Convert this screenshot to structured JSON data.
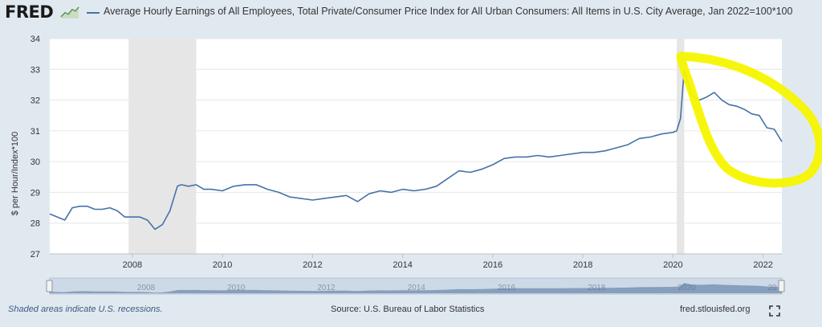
{
  "header": {
    "logo_text": "FRED",
    "title": "Average Hourly Earnings of All Employees, Total Private/Consumer Price Index for All Urban Consumers: All Items in U.S. City Average, Jan 2022=100*100"
  },
  "footer": {
    "recession_note": "Shaded areas indicate U.S. recessions.",
    "source": "Source: U.S. Bureau of Labor Statistics",
    "site": "fred.stlouisfed.org"
  },
  "colors": {
    "background": "#e1e9f0",
    "plot_background": "#ffffff",
    "series": "#4572a7",
    "recession": "#e6e6e6",
    "annotation": "#f5f500"
  },
  "icons": [
    "fred-sparkline-icon",
    "fullscreen-icon"
  ],
  "chart_data": {
    "type": "line",
    "title": "Average Hourly Earnings of All Employees, Total Private/Consumer Price Index for All Urban Consumers: All Items in U.S. City Average, Jan 2022=100*100",
    "xlabel": "",
    "ylabel": "$ per Hour/Index*100",
    "x_ticks": [
      "2008",
      "2010",
      "2012",
      "2014",
      "2016",
      "2018",
      "2020",
      "2022"
    ],
    "y_ticks": [
      27,
      28,
      29,
      30,
      31,
      32,
      33,
      34
    ],
    "xlim": [
      "2006-03",
      "2022-06"
    ],
    "ylim": [
      27,
      34
    ],
    "grid": true,
    "recessions": [
      {
        "start": "2007-12",
        "end": "2009-06"
      },
      {
        "start": "2020-02",
        "end": "2020-04"
      }
    ],
    "series": [
      {
        "x": [
          "2006-03",
          "2006-05",
          "2006-07",
          "2006-09",
          "2006-11",
          "2007-01",
          "2007-03",
          "2007-05",
          "2007-07",
          "2007-09",
          "2007-11",
          "2008-01",
          "2008-03",
          "2008-05",
          "2008-07",
          "2008-09",
          "2008-11",
          "2009-01",
          "2009-02",
          "2009-04",
          "2009-06",
          "2009-08",
          "2009-10",
          "2010-01",
          "2010-04",
          "2010-07",
          "2010-10",
          "2011-01",
          "2011-04",
          "2011-07",
          "2011-10",
          "2012-01",
          "2012-04",
          "2012-07",
          "2012-10",
          "2013-01",
          "2013-04",
          "2013-07",
          "2013-10",
          "2014-01",
          "2014-04",
          "2014-07",
          "2014-10",
          "2015-01",
          "2015-04",
          "2015-07",
          "2015-10",
          "2016-01",
          "2016-04",
          "2016-07",
          "2016-10",
          "2017-01",
          "2017-04",
          "2017-07",
          "2017-10",
          "2018-01",
          "2018-04",
          "2018-07",
          "2018-10",
          "2019-01",
          "2019-04",
          "2019-07",
          "2019-10",
          "2020-01",
          "2020-02",
          "2020-03",
          "2020-04",
          "2020-06",
          "2020-08",
          "2020-10",
          "2020-12",
          "2021-02",
          "2021-04",
          "2021-06",
          "2021-08",
          "2021-10",
          "2021-12",
          "2022-02",
          "2022-04",
          "2022-06"
        ],
        "values": [
          28.3,
          28.2,
          28.1,
          28.5,
          28.55,
          28.55,
          28.45,
          28.45,
          28.5,
          28.4,
          28.2,
          28.2,
          28.2,
          28.1,
          27.8,
          27.95,
          28.4,
          29.2,
          29.25,
          29.2,
          29.25,
          29.1,
          29.1,
          29.05,
          29.2,
          29.25,
          29.25,
          29.1,
          29.0,
          28.85,
          28.8,
          28.75,
          28.8,
          28.85,
          28.9,
          28.7,
          28.95,
          29.05,
          29.0,
          29.1,
          29.05,
          29.1,
          29.2,
          29.45,
          29.7,
          29.65,
          29.75,
          29.9,
          30.1,
          30.15,
          30.15,
          30.2,
          30.15,
          30.2,
          30.25,
          30.3,
          30.3,
          30.35,
          30.45,
          30.55,
          30.75,
          30.8,
          30.9,
          30.95,
          31.0,
          31.4,
          33.0,
          32.15,
          32.0,
          32.1,
          32.25,
          32.0,
          31.85,
          31.8,
          31.7,
          31.55,
          31.5,
          31.1,
          31.05,
          30.65
        ]
      }
    ],
    "navigator_ticks": [
      "2008",
      "2010",
      "2012",
      "2014",
      "2016",
      "2018",
      "2020",
      "20"
    ]
  }
}
